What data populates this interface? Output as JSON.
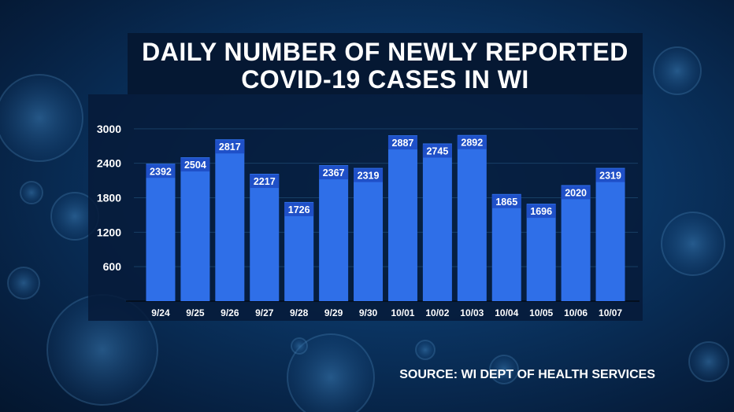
{
  "title_lines": [
    "DAILY NUMBER OF NEWLY REPORTED",
    "COVID-19 CASES IN WI"
  ],
  "source": "SOURCE: WI DEPT OF HEALTH SERVICES",
  "colors": {
    "bar": "#2f6fe8",
    "bar_label_bg": "#1f50c8",
    "panel": "#061a38",
    "grid": "#25557f",
    "title_bg": "#051833"
  },
  "chart_data": {
    "type": "bar",
    "title": "DAILY NUMBER OF NEWLY REPORTED COVID-19 CASES IN WI",
    "categories": [
      "9/24",
      "9/25",
      "9/26",
      "9/27",
      "9/28",
      "9/29",
      "9/30",
      "10/01",
      "10/02",
      "10/03",
      "10/04",
      "10/05",
      "10/06",
      "10/07"
    ],
    "values": [
      2392,
      2504,
      2817,
      2217,
      1726,
      2367,
      2319,
      2887,
      2745,
      2892,
      1865,
      1696,
      2020,
      2319
    ],
    "yticks": [
      600,
      1200,
      1800,
      2400,
      3000
    ],
    "ylim": [
      0,
      3600
    ],
    "grid": true,
    "xlabel": "",
    "ylabel": ""
  }
}
